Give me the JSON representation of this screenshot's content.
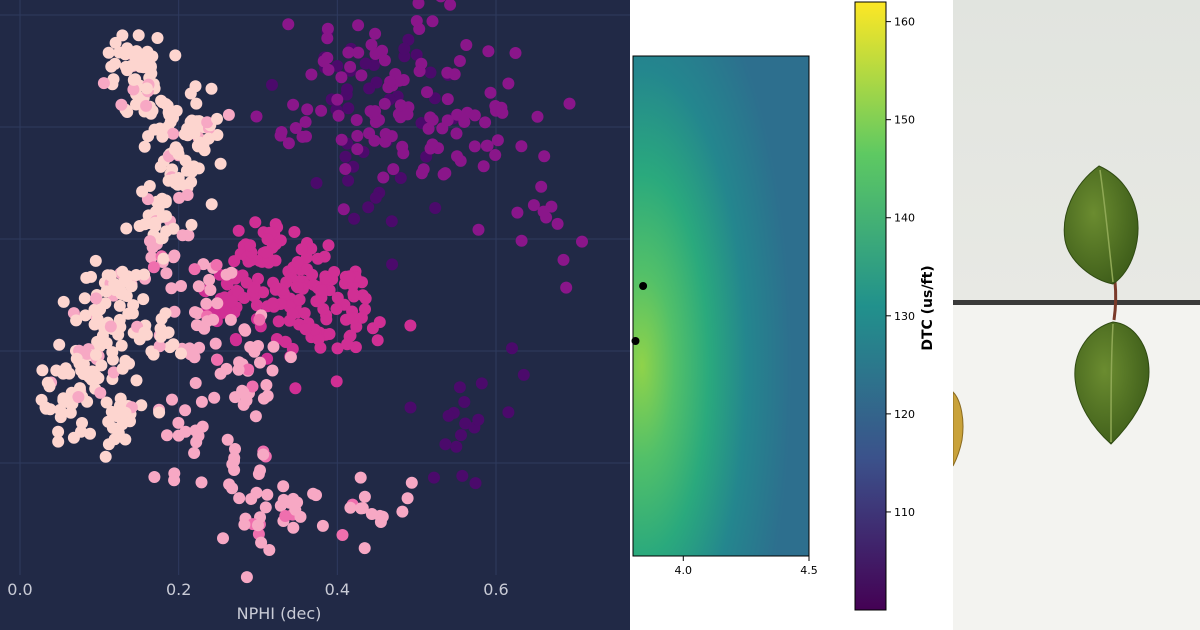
{
  "chart_data": [
    {
      "type": "scatter",
      "title": "",
      "xlabel": "NPHI (dec)",
      "ylabel": "",
      "x_ticks": [
        0.0,
        0.2,
        0.4,
        0.6
      ],
      "x_tick_labels": [
        "0.0",
        "0.2",
        "0.4",
        "0.6"
      ],
      "xlim": [
        -0.02,
        0.76
      ],
      "grid": true,
      "background": "#212946",
      "grid_color": "#2e3a5e",
      "colors": [
        "#fdd5cf",
        "#f7a8c4",
        "#ef6fae",
        "#d02f94",
        "#8a168a",
        "#4b0a6b"
      ],
      "clusters": [
        {
          "label": "",
          "color_index": 0,
          "points": [
            [
              0.14,
              0.9
            ],
            [
              0.16,
              0.86
            ],
            [
              0.19,
              0.8
            ],
            [
              0.2,
              0.7
            ],
            [
              0.17,
              0.62
            ],
            [
              0.12,
              0.5
            ],
            [
              0.1,
              0.44
            ],
            [
              0.08,
              0.35
            ],
            [
              0.13,
              0.28
            ],
            [
              0.06,
              0.3
            ],
            [
              0.16,
              0.42
            ],
            [
              0.22,
              0.78
            ]
          ]
        },
        {
          "label": "",
          "color_index": 1,
          "points": [
            [
              0.18,
              0.55
            ],
            [
              0.24,
              0.5
            ],
            [
              0.22,
              0.38
            ],
            [
              0.3,
              0.4
            ],
            [
              0.27,
              0.2
            ],
            [
              0.3,
              0.08
            ],
            [
              0.34,
              0.12
            ],
            [
              0.43,
              0.11
            ],
            [
              0.28,
              0.32
            ],
            [
              0.2,
              0.24
            ]
          ]
        },
        {
          "label": "",
          "color_index": 3,
          "points": [
            [
              0.3,
              0.52
            ],
            [
              0.35,
              0.55
            ],
            [
              0.32,
              0.47
            ],
            [
              0.38,
              0.5
            ],
            [
              0.26,
              0.46
            ],
            [
              0.42,
              0.45
            ],
            [
              0.29,
              0.58
            ],
            [
              0.36,
              0.43
            ]
          ]
        },
        {
          "label": "",
          "color_index": 4,
          "points": [
            [
              0.36,
              0.8
            ],
            [
              0.4,
              0.84
            ],
            [
              0.44,
              0.78
            ],
            [
              0.48,
              0.83
            ],
            [
              0.52,
              0.76
            ],
            [
              0.56,
              0.8
            ],
            [
              0.6,
              0.82
            ],
            [
              0.46,
              0.91
            ],
            [
              0.52,
              0.98
            ],
            [
              0.66,
              0.64
            ]
          ]
        },
        {
          "label": "",
          "color_index": 5,
          "points": [
            [
              0.4,
              0.9
            ],
            [
              0.44,
              0.86
            ],
            [
              0.5,
              0.92
            ],
            [
              0.48,
              0.7
            ],
            [
              0.42,
              0.72
            ],
            [
              0.56,
              0.3
            ],
            [
              0.55,
              0.22
            ]
          ]
        }
      ]
    },
    {
      "type": "heatmap",
      "xlim": [
        3.8,
        4.5
      ],
      "x_ticks": [
        4.0,
        4.5
      ],
      "x_tick_labels": [
        "4.0",
        "4.5"
      ],
      "colormap": "viridis",
      "markers": [
        [
          3.84,
          0.54
        ],
        [
          3.81,
          0.43
        ]
      ],
      "colorbar": {
        "label": "DTC (us/ft)",
        "range": [
          100,
          162
        ],
        "ticks": [
          110,
          120,
          130,
          140,
          150,
          160
        ],
        "tick_labels": [
          "110",
          "120",
          "130",
          "140",
          "150",
          "160"
        ],
        "colors": [
          "#440154",
          "#3b528b",
          "#21918c",
          "#5ec962",
          "#fde725"
        ]
      }
    }
  ],
  "photo": {
    "leaf_color": "#4e6f23",
    "background_upper": "#e4e6e1",
    "background_lower": "#f3f3f0",
    "shelf_color": "#3a3a3a"
  }
}
